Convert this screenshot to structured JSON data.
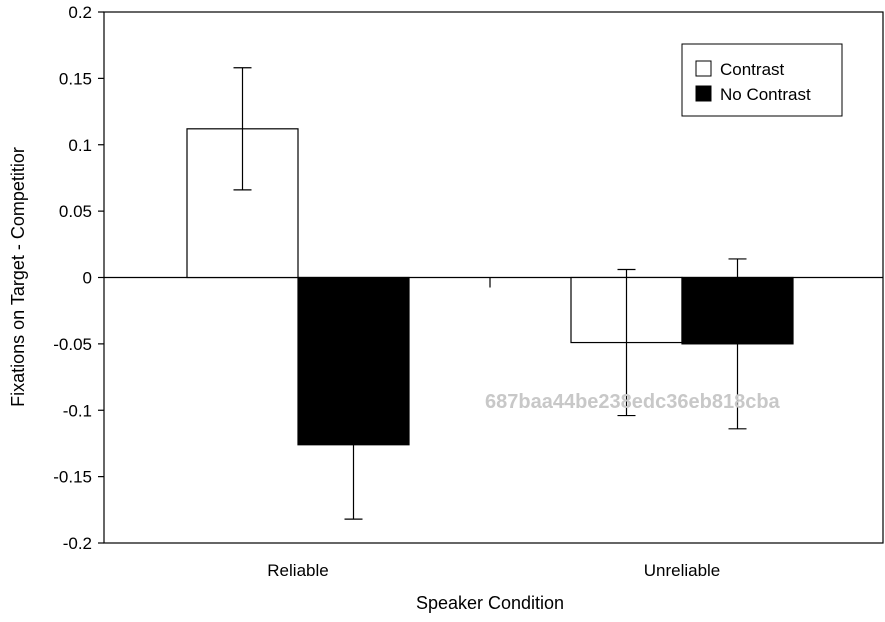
{
  "chart_data": {
    "type": "bar",
    "title": "",
    "xlabel": "Speaker Condition",
    "ylabel": "Fixations on Target - Competitior",
    "categories": [
      "Reliable",
      "Unreliable"
    ],
    "series": [
      {
        "name": "Contrast",
        "color": "#ffffff",
        "values": [
          0.112,
          -0.049
        ],
        "error": [
          0.046,
          0.055
        ]
      },
      {
        "name": "No Contrast",
        "color": "#000000",
        "values": [
          -0.126,
          -0.05
        ],
        "error": [
          0.056,
          0.064
        ]
      }
    ],
    "ylim": [
      -0.2,
      0.2
    ],
    "yticks": [
      "0.2",
      "0.15",
      "0.1",
      "0.05",
      "0",
      "-0.05",
      "-0.1",
      "-0.15",
      "-0.2"
    ],
    "ytick_values": [
      0.2,
      0.15,
      0.1,
      0.05,
      0,
      -0.05,
      -0.1,
      -0.15,
      -0.2
    ],
    "legend_position": "top-right",
    "grid": false
  },
  "watermark": "687baa44be238edc36eb818cba"
}
